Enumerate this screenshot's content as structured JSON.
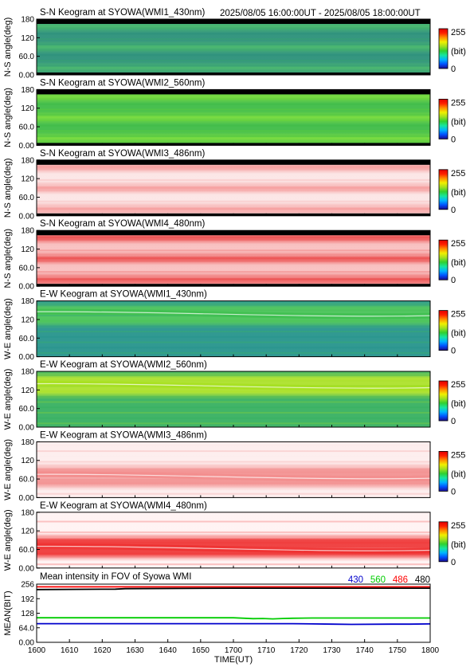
{
  "header": {
    "time_range": "2025/08/05 16:00:00UT - 2025/08/05 18:00:00UT"
  },
  "colorbar": {
    "max_label": "255",
    "unit_label": "(bit)",
    "min_label": "0",
    "colors": [
      "#1a0a8c",
      "#0050ff",
      "#00b4ff",
      "#16e6a0",
      "#30d030",
      "#a0e020",
      "#f0f000",
      "#ff9000",
      "#ff2000",
      "#e00000"
    ]
  },
  "chart_data": [
    {
      "type": "heatmap",
      "title": "S-N Keogram at SYOWA(WMI1_430nm)",
      "ylabel": "N-S angle(deg)",
      "yticks": [
        "0.00",
        "60.0",
        "120",
        "180"
      ],
      "ylim": [
        0,
        180
      ],
      "base_color": "#1f8a72",
      "highlight_color": "#38b060"
    },
    {
      "type": "heatmap",
      "title": "S-N Keogram at SYOWA(WMI2_560nm)",
      "ylabel": "N-S angle(deg)",
      "yticks": [
        "0.00",
        "60.0",
        "120",
        "180"
      ],
      "ylim": [
        0,
        180
      ],
      "base_color": "#34b83c",
      "highlight_color": "#6cd82c"
    },
    {
      "type": "heatmap",
      "title": "S-N Keogram at SYOWA(WMI3_486nm)",
      "ylabel": "N-S angle(deg)",
      "yticks": [
        "0.00",
        "60.0",
        "120",
        "180"
      ],
      "ylim": [
        0,
        180
      ],
      "base_color": "#fbe4e4",
      "highlight_color": "#f59494"
    },
    {
      "type": "heatmap",
      "title": "S-N Keogram at SYOWA(WMI4_480nm)",
      "ylabel": "N-S angle(deg)",
      "yticks": [
        "0.00",
        "60.0",
        "120",
        "180"
      ],
      "ylim": [
        0,
        180
      ],
      "base_color": "#f8bcbc",
      "highlight_color": "#ea4040"
    },
    {
      "type": "heatmap",
      "title": "E-W Keogram at SYOWA(WMI1_430nm)",
      "ylabel": "W-E angle(deg)",
      "yticks": [
        "0.00",
        "60.0",
        "120",
        "180"
      ],
      "ylim": [
        0,
        180
      ],
      "base_color": "#1a8e86",
      "highlight_color": "#40c050",
      "arc_deg": 140
    },
    {
      "type": "heatmap",
      "title": "E-W Keogram at SYOWA(WMI2_560nm)",
      "ylabel": "W-E angle(deg)",
      "yticks": [
        "0.00",
        "60.0",
        "120",
        "180"
      ],
      "ylim": [
        0,
        180
      ],
      "base_color": "#2cac58",
      "highlight_color": "#a8e020",
      "arc_deg": 135
    },
    {
      "type": "heatmap",
      "title": "E-W Keogram at SYOWA(WMI3_486nm)",
      "ylabel": "W-E angle(deg)",
      "yticks": [
        "0.00",
        "60.0",
        "120",
        "180"
      ],
      "ylim": [
        0,
        180
      ],
      "base_color": "#fdecec",
      "highlight_color": "#f28c8c",
      "arc_deg": 70
    },
    {
      "type": "heatmap",
      "title": "E-W Keogram at SYOWA(WMI4_480nm)",
      "ylabel": "W-E angle(deg)",
      "yticks": [
        "0.00",
        "60.0",
        "120",
        "180"
      ],
      "ylim": [
        0,
        180
      ],
      "base_color": "#fff2f2",
      "highlight_color": "#ee3030",
      "arc_deg": 65
    },
    {
      "type": "line",
      "title": "Mean intensity in FOV of Syowa WMI",
      "xlabel": "TIME(UT)",
      "ylabel": "MEAN(BIT)",
      "xlim": [
        1600,
        1800
      ],
      "ylim": [
        0,
        256
      ],
      "xticks": [
        "1600",
        "1610",
        "1620",
        "1630",
        "1640",
        "1650",
        "1700",
        "1710",
        "1720",
        "1730",
        "1740",
        "1750",
        "1800"
      ],
      "yticks": [
        "0.00",
        "64.0",
        "128",
        "192",
        "256"
      ],
      "x": [
        1600,
        1640,
        1645,
        1700,
        1710,
        1715,
        1720,
        1725,
        1730,
        1740,
        1750,
        1760,
        1780,
        1790,
        1800
      ],
      "series": [
        {
          "name": "430",
          "color": "#0000cc",
          "values": [
            82,
            82,
            82,
            82,
            82,
            82,
            82,
            82,
            82,
            81,
            80,
            79,
            80,
            80,
            81
          ]
        },
        {
          "name": "560",
          "color": "#00cc00",
          "values": [
            108,
            108,
            108,
            108,
            104,
            105,
            103,
            105,
            106,
            107,
            107,
            107,
            107,
            107,
            107
          ]
        },
        {
          "name": "486",
          "color": "#ff0000",
          "values": [
            244,
            244,
            244,
            244,
            244,
            244,
            244,
            244,
            244,
            244,
            244,
            244,
            244,
            244,
            244
          ]
        },
        {
          "name": "480",
          "color": "#000000",
          "values": [
            232,
            234,
            236,
            238,
            238,
            238,
            238,
            238,
            238,
            238,
            238,
            238,
            238,
            238,
            238
          ]
        }
      ]
    }
  ]
}
